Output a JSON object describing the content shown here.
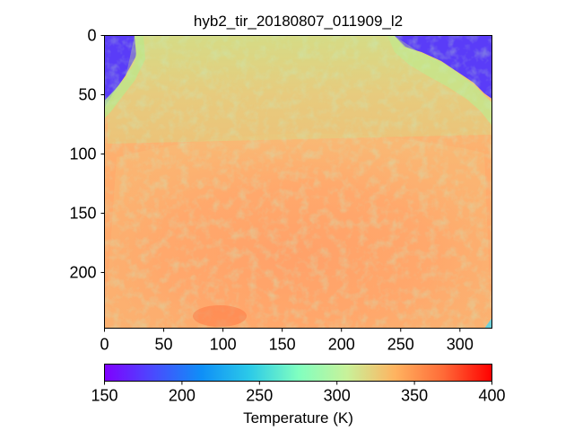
{
  "chart_data": {
    "type": "heatmap",
    "title": "hyb2_tir_20180807_011909_l2",
    "xlabel": "",
    "ylabel": "",
    "xlim": [
      0,
      327
    ],
    "ylim": [
      247,
      0
    ],
    "x_ticks": [
      "0",
      "50",
      "100",
      "150",
      "200",
      "250",
      "300"
    ],
    "y_ticks": [
      "0",
      "50",
      "100",
      "150",
      "200"
    ],
    "x_tick_values": [
      0,
      50,
      100,
      150,
      200,
      250,
      300
    ],
    "y_tick_values": [
      0,
      50,
      100,
      150,
      200
    ],
    "colormap": "rainbow",
    "colorbar": {
      "label": "Temperature (K)",
      "range": [
        150,
        400
      ],
      "ticks": [
        "150",
        "200",
        "250",
        "300",
        "350",
        "400"
      ],
      "tick_values": [
        150,
        200,
        250,
        300,
        350,
        400
      ],
      "orientation": "horizontal",
      "placement": "bottom"
    },
    "image_summary": {
      "description_values_K": {
        "background_space_corners": 165,
        "asteroid_upper_region": 318,
        "asteroid_lower_region": 338
      }
    }
  }
}
